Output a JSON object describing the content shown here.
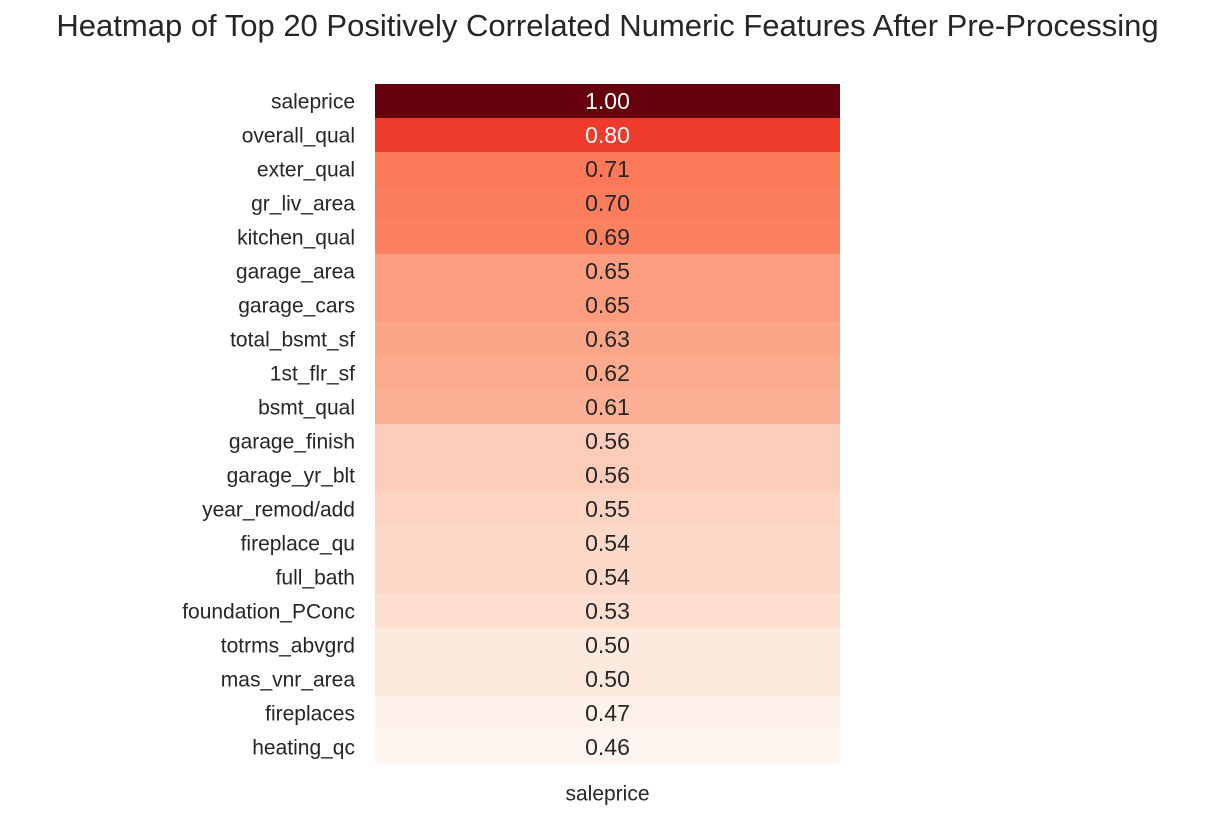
{
  "chart_data": {
    "type": "heatmap",
    "title": "Heatmap of Top 20 Positively Correlated Numeric Features After Pre-Processing",
    "columns": [
      "saleprice"
    ],
    "rows": [
      {
        "label": "saleprice",
        "value": 1.0,
        "text": "1.00"
      },
      {
        "label": "overall_qual",
        "value": 0.8,
        "text": "0.80"
      },
      {
        "label": "exter_qual",
        "value": 0.71,
        "text": "0.71"
      },
      {
        "label": "gr_liv_area",
        "value": 0.7,
        "text": "0.70"
      },
      {
        "label": "kitchen_qual",
        "value": 0.69,
        "text": "0.69"
      },
      {
        "label": "garage_area",
        "value": 0.65,
        "text": "0.65"
      },
      {
        "label": "garage_cars",
        "value": 0.65,
        "text": "0.65"
      },
      {
        "label": "total_bsmt_sf",
        "value": 0.63,
        "text": "0.63"
      },
      {
        "label": "1st_flr_sf",
        "value": 0.62,
        "text": "0.62"
      },
      {
        "label": "bsmt_qual",
        "value": 0.61,
        "text": "0.61"
      },
      {
        "label": "garage_finish",
        "value": 0.56,
        "text": "0.56"
      },
      {
        "label": "garage_yr_blt",
        "value": 0.56,
        "text": "0.56"
      },
      {
        "label": "year_remod/add",
        "value": 0.55,
        "text": "0.55"
      },
      {
        "label": "fireplace_qu",
        "value": 0.54,
        "text": "0.54"
      },
      {
        "label": "full_bath",
        "value": 0.54,
        "text": "0.54"
      },
      {
        "label": "foundation_PConc",
        "value": 0.53,
        "text": "0.53"
      },
      {
        "label": "totrms_abvgrd",
        "value": 0.5,
        "text": "0.50"
      },
      {
        "label": "mas_vnr_area",
        "value": 0.5,
        "text": "0.50"
      },
      {
        "label": "fireplaces",
        "value": 0.47,
        "text": "0.47"
      },
      {
        "label": "heating_qc",
        "value": 0.46,
        "text": "0.46"
      }
    ],
    "cell_colors": [
      "#67000d",
      "#ef3b2c",
      "#fb7858",
      "#fb7d5d",
      "#fc8161",
      "#fc9d7f",
      "#fc9d7f",
      "#fca689",
      "#fcab8f",
      "#fcaf93",
      "#fdcdb9",
      "#fdcdb9",
      "#fdd4c2",
      "#fdd9c9",
      "#fdd9c9",
      "#fedfd0",
      "#fee9df",
      "#fee9df",
      "#fff2eb",
      "#fff5f0"
    ],
    "colorscale": "Reds",
    "colorbar": false,
    "grid": false,
    "legend": "none"
  }
}
